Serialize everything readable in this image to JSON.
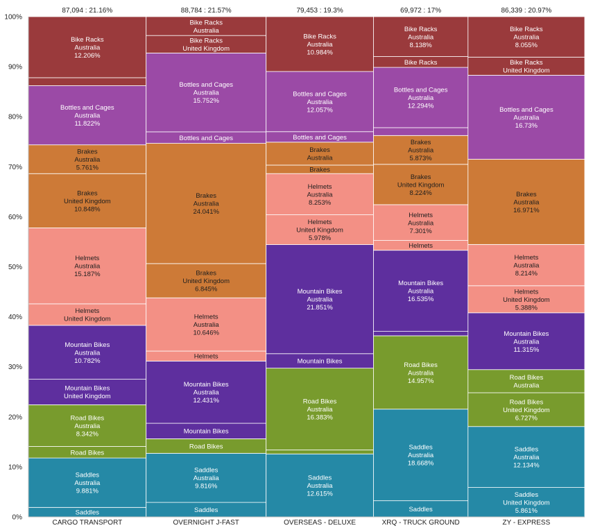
{
  "colors": {
    "Bike Racks": "#9a3a3c",
    "Bottles and Cages": "#9b4aa6",
    "Brakes": "#cd7a37",
    "Helmets": "#f39085",
    "Mountain Bikes": "#5e2f9e",
    "Road Bikes": "#789b2d",
    "Saddles": "#2589a6"
  },
  "chart_data": {
    "type": "mekko",
    "ylim": [
      0,
      100
    ],
    "y_ticks": [
      "0%",
      "10%",
      "20%",
      "30%",
      "40%",
      "50%",
      "60%",
      "70%",
      "80%",
      "90%",
      "100%"
    ],
    "x_categories": [
      "CARGO TRANSPORT",
      "OVERNIGHT J-FAST",
      "OVERSEAS - DELUXE",
      "XRQ - TRUCK GROUND",
      "ZY - EXPRESS"
    ],
    "column_totals": [
      "87,094 : 21.16%",
      "88,784 : 21.57%",
      "79,453 : 19.3%",
      "69,972 : 17%",
      "86,339 : 20.97%"
    ],
    "column_shares": [
      21.16,
      21.57,
      19.3,
      17,
      20.97
    ],
    "columns": [
      {
        "name": "CARGO TRANSPORT",
        "segments": [
          {
            "category": "Saddles",
            "country": "United Kingdom",
            "pct": 1.9,
            "lines": [
              "Saddles"
            ]
          },
          {
            "category": "Saddles",
            "country": "Australia",
            "pct": 9.881,
            "lines": [
              "Saddles",
              "Australia",
              "9.881%"
            ]
          },
          {
            "category": "Road Bikes",
            "country": "United Kingdom",
            "pct": 2.3,
            "lines": [
              "Road Bikes"
            ]
          },
          {
            "category": "Road Bikes",
            "country": "Australia",
            "pct": 8.342,
            "lines": [
              "Road Bikes",
              "Australia",
              "8.342%"
            ]
          },
          {
            "category": "Mountain Bikes",
            "country": "United Kingdom",
            "pct": 5.1,
            "lines": [
              "Mountain Bikes",
              "United Kingdom"
            ]
          },
          {
            "category": "Mountain Bikes",
            "country": "Australia",
            "pct": 10.782,
            "lines": [
              "Mountain Bikes",
              "Australia",
              "10.782%"
            ]
          },
          {
            "category": "Helmets",
            "country": "United Kingdom",
            "pct": 4.3,
            "lines": [
              "Helmets",
              "United Kingdom"
            ]
          },
          {
            "category": "Helmets",
            "country": "Australia",
            "pct": 15.187,
            "lines": [
              "Helmets",
              "Australia",
              "15.187%"
            ]
          },
          {
            "category": "Brakes",
            "country": "United Kingdom",
            "pct": 10.848,
            "lines": [
              "Brakes",
              "United Kingdom",
              "10.848%"
            ]
          },
          {
            "category": "Brakes",
            "country": "Australia",
            "pct": 5.761,
            "lines": [
              "Brakes",
              "Australia",
              "5.761%"
            ]
          },
          {
            "category": "Bottles and Cages",
            "country": "Australia",
            "pct": 11.822,
            "lines": [
              "Bottles and Cages",
              "Australia",
              "11.822%"
            ]
          },
          {
            "category": "Bike Racks",
            "country": "United Kingdom",
            "pct": 1.6,
            "lines": []
          },
          {
            "category": "Bike Racks",
            "country": "Australia",
            "pct": 12.206,
            "lines": [
              "Bike Racks",
              "Australia",
              "12.206%"
            ]
          }
        ]
      },
      {
        "name": "OVERNIGHT J-FAST",
        "segments": [
          {
            "category": "Saddles",
            "country": "United Kingdom",
            "pct": 2.9,
            "lines": [
              "Saddles"
            ]
          },
          {
            "category": "Saddles",
            "country": "Australia",
            "pct": 9.816,
            "lines": [
              "Saddles",
              "Australia",
              "9.816%"
            ]
          },
          {
            "category": "Road Bikes",
            "country": "United Kingdom",
            "pct": 2.9,
            "lines": [
              "Road Bikes"
            ]
          },
          {
            "category": "Mountain Bikes",
            "country": "United Kingdom",
            "pct": 3.1,
            "lines": [
              "Mountain Bikes"
            ]
          },
          {
            "category": "Mountain Bikes",
            "country": "Australia",
            "pct": 12.431,
            "lines": [
              "Mountain Bikes",
              "Australia",
              "12.431%"
            ]
          },
          {
            "category": "Helmets",
            "country": "United Kingdom",
            "pct": 2.0,
            "lines": [
              "Helmets"
            ]
          },
          {
            "category": "Helmets",
            "country": "Australia",
            "pct": 10.646,
            "lines": [
              "Helmets",
              "Australia",
              "10.646%"
            ]
          },
          {
            "category": "Brakes",
            "country": "United Kingdom",
            "pct": 6.845,
            "lines": [
              "Brakes",
              "United Kingdom",
              "6.845%"
            ]
          },
          {
            "category": "Brakes",
            "country": "Australia",
            "pct": 24.041,
            "lines": [
              "Brakes",
              "Australia",
              "24.041%"
            ]
          },
          {
            "category": "Bottles and Cages",
            "country": "United Kingdom",
            "pct": 2.3,
            "lines": [
              "Bottles and Cages"
            ]
          },
          {
            "category": "Bottles and Cages",
            "country": "Australia",
            "pct": 15.752,
            "lines": [
              "Bottles and Cages",
              "Australia",
              "15.752%"
            ]
          },
          {
            "category": "Bike Racks",
            "country": "United Kingdom",
            "pct": 3.5,
            "lines": [
              "Bike Racks",
              "United Kingdom"
            ]
          },
          {
            "category": "Bike Racks",
            "country": "Australia",
            "pct": 3.769,
            "lines": [
              "Bike Racks",
              "Australia"
            ]
          }
        ]
      },
      {
        "name": "OVERSEAS - DELUXE",
        "segments": [
          {
            "category": "Saddles",
            "country": "Australia",
            "pct": 12.615,
            "lines": [
              "Saddles",
              "Australia",
              "12.615%"
            ]
          },
          {
            "category": "Road Bikes",
            "country": "United Kingdom",
            "pct": 0.8,
            "lines": []
          },
          {
            "category": "Road Bikes",
            "country": "Australia",
            "pct": 16.383,
            "lines": [
              "Road Bikes",
              "Australia",
              "16.383%"
            ]
          },
          {
            "category": "Mountain Bikes",
            "country": "United Kingdom",
            "pct": 2.9,
            "lines": [
              "Mountain Bikes"
            ]
          },
          {
            "category": "Mountain Bikes",
            "country": "Australia",
            "pct": 21.851,
            "lines": [
              "Mountain Bikes",
              "Australia",
              "21.851%"
            ]
          },
          {
            "category": "Helmets",
            "country": "United Kingdom",
            "pct": 5.978,
            "lines": [
              "Helmets",
              "United Kingdom",
              "5.978%"
            ]
          },
          {
            "category": "Helmets",
            "country": "Australia",
            "pct": 8.253,
            "lines": [
              "Helmets",
              "Australia",
              "8.253%"
            ]
          },
          {
            "category": "Brakes",
            "country": "United Kingdom",
            "pct": 1.7,
            "lines": [
              "Brakes"
            ]
          },
          {
            "category": "Brakes",
            "country": "Australia",
            "pct": 4.6,
            "lines": [
              "Brakes",
              "Australia"
            ]
          },
          {
            "category": "Bottles and Cages",
            "country": "United Kingdom",
            "pct": 2.1,
            "lines": [
              "Bottles and Cages"
            ]
          },
          {
            "category": "Bottles and Cages",
            "country": "Australia",
            "pct": 12.057,
            "lines": [
              "Bottles and Cages",
              "Australia",
              "12.057%"
            ]
          },
          {
            "category": "Bike Racks",
            "country": "Australia",
            "pct": 10.984,
            "lines": [
              "Bike Racks",
              "Australia",
              "10.984%"
            ]
          }
        ]
      },
      {
        "name": "XRQ - TRUCK GROUND",
        "segments": [
          {
            "category": "Saddles",
            "country": "United Kingdom",
            "pct": 3.3,
            "lines": [
              "Saddles"
            ]
          },
          {
            "category": "Saddles",
            "country": "Australia",
            "pct": 18.668,
            "lines": [
              "Saddles",
              "Australia",
              "18.668%"
            ]
          },
          {
            "category": "Road Bikes",
            "country": "Australia",
            "pct": 14.957,
            "lines": [
              "Road Bikes",
              "Australia",
              "14.957%"
            ]
          },
          {
            "category": "Mountain Bikes",
            "country": "United Kingdom",
            "pct": 0.9,
            "lines": []
          },
          {
            "category": "Mountain Bikes",
            "country": "Australia",
            "pct": 16.535,
            "lines": [
              "Mountain Bikes",
              "Australia",
              "16.535%"
            ]
          },
          {
            "category": "Helmets",
            "country": "United Kingdom",
            "pct": 2.0,
            "lines": [
              "Helmets"
            ]
          },
          {
            "category": "Helmets",
            "country": "Australia",
            "pct": 7.301,
            "lines": [
              "Helmets",
              "Australia",
              "7.301%"
            ]
          },
          {
            "category": "Brakes",
            "country": "United Kingdom",
            "pct": 8.224,
            "lines": [
              "Brakes",
              "United Kingdom",
              "8.224%"
            ]
          },
          {
            "category": "Brakes",
            "country": "Australia",
            "pct": 5.873,
            "lines": [
              "Brakes",
              "Australia",
              "5.873%"
            ]
          },
          {
            "category": "Bottles and Cages",
            "country": "United Kingdom",
            "pct": 1.6,
            "lines": []
          },
          {
            "category": "Bottles and Cages",
            "country": "Australia",
            "pct": 12.294,
            "lines": [
              "Bottles and Cages",
              "Australia",
              "12.294%"
            ]
          },
          {
            "category": "Bike Racks",
            "country": "United Kingdom",
            "pct": 2.2,
            "lines": [
              "Bike Racks"
            ]
          },
          {
            "category": "Bike Racks",
            "country": "Australia",
            "pct": 8.138,
            "lines": [
              "Bike Racks",
              "Australia",
              "8.138%"
            ]
          }
        ]
      },
      {
        "name": "ZY - EXPRESS",
        "segments": [
          {
            "category": "Saddles",
            "country": "United Kingdom",
            "pct": 5.861,
            "lines": [
              "Saddles",
              "United Kingdom",
              "5.861%"
            ]
          },
          {
            "category": "Saddles",
            "country": "Australia",
            "pct": 12.134,
            "lines": [
              "Saddles",
              "Australia",
              "12.134%"
            ]
          },
          {
            "category": "Road Bikes",
            "country": "United Kingdom",
            "pct": 6.727,
            "lines": [
              "Road Bikes",
              "United Kingdom",
              "6.727%"
            ]
          },
          {
            "category": "Road Bikes",
            "country": "Australia",
            "pct": 4.6,
            "lines": [
              "Road Bikes",
              "Australia"
            ]
          },
          {
            "category": "Mountain Bikes",
            "country": "Australia",
            "pct": 11.315,
            "lines": [
              "Mountain Bikes",
              "Australia",
              "11.315%"
            ]
          },
          {
            "category": "Helmets",
            "country": "United Kingdom",
            "pct": 5.388,
            "lines": [
              "Helmets",
              "United Kingdom",
              "5.388%"
            ]
          },
          {
            "category": "Helmets",
            "country": "Australia",
            "pct": 8.214,
            "lines": [
              "Helmets",
              "Australia",
              "8.214%"
            ]
          },
          {
            "category": "Brakes",
            "country": "Australia",
            "pct": 16.971,
            "lines": [
              "Brakes",
              "Australia",
              "16.971%"
            ]
          },
          {
            "category": "Bottles and Cages",
            "country": "Australia",
            "pct": 16.73,
            "lines": [
              "Bottles and Cages",
              "Australia",
              "16.73%"
            ]
          },
          {
            "category": "Bike Racks",
            "country": "United Kingdom",
            "pct": 3.6,
            "lines": [
              "Bike Racks",
              "United Kingdom"
            ]
          },
          {
            "category": "Bike Racks",
            "country": "Australia",
            "pct": 8.055,
            "lines": [
              "Bike Racks",
              "Australia",
              "8.055%"
            ]
          }
        ]
      }
    ]
  }
}
